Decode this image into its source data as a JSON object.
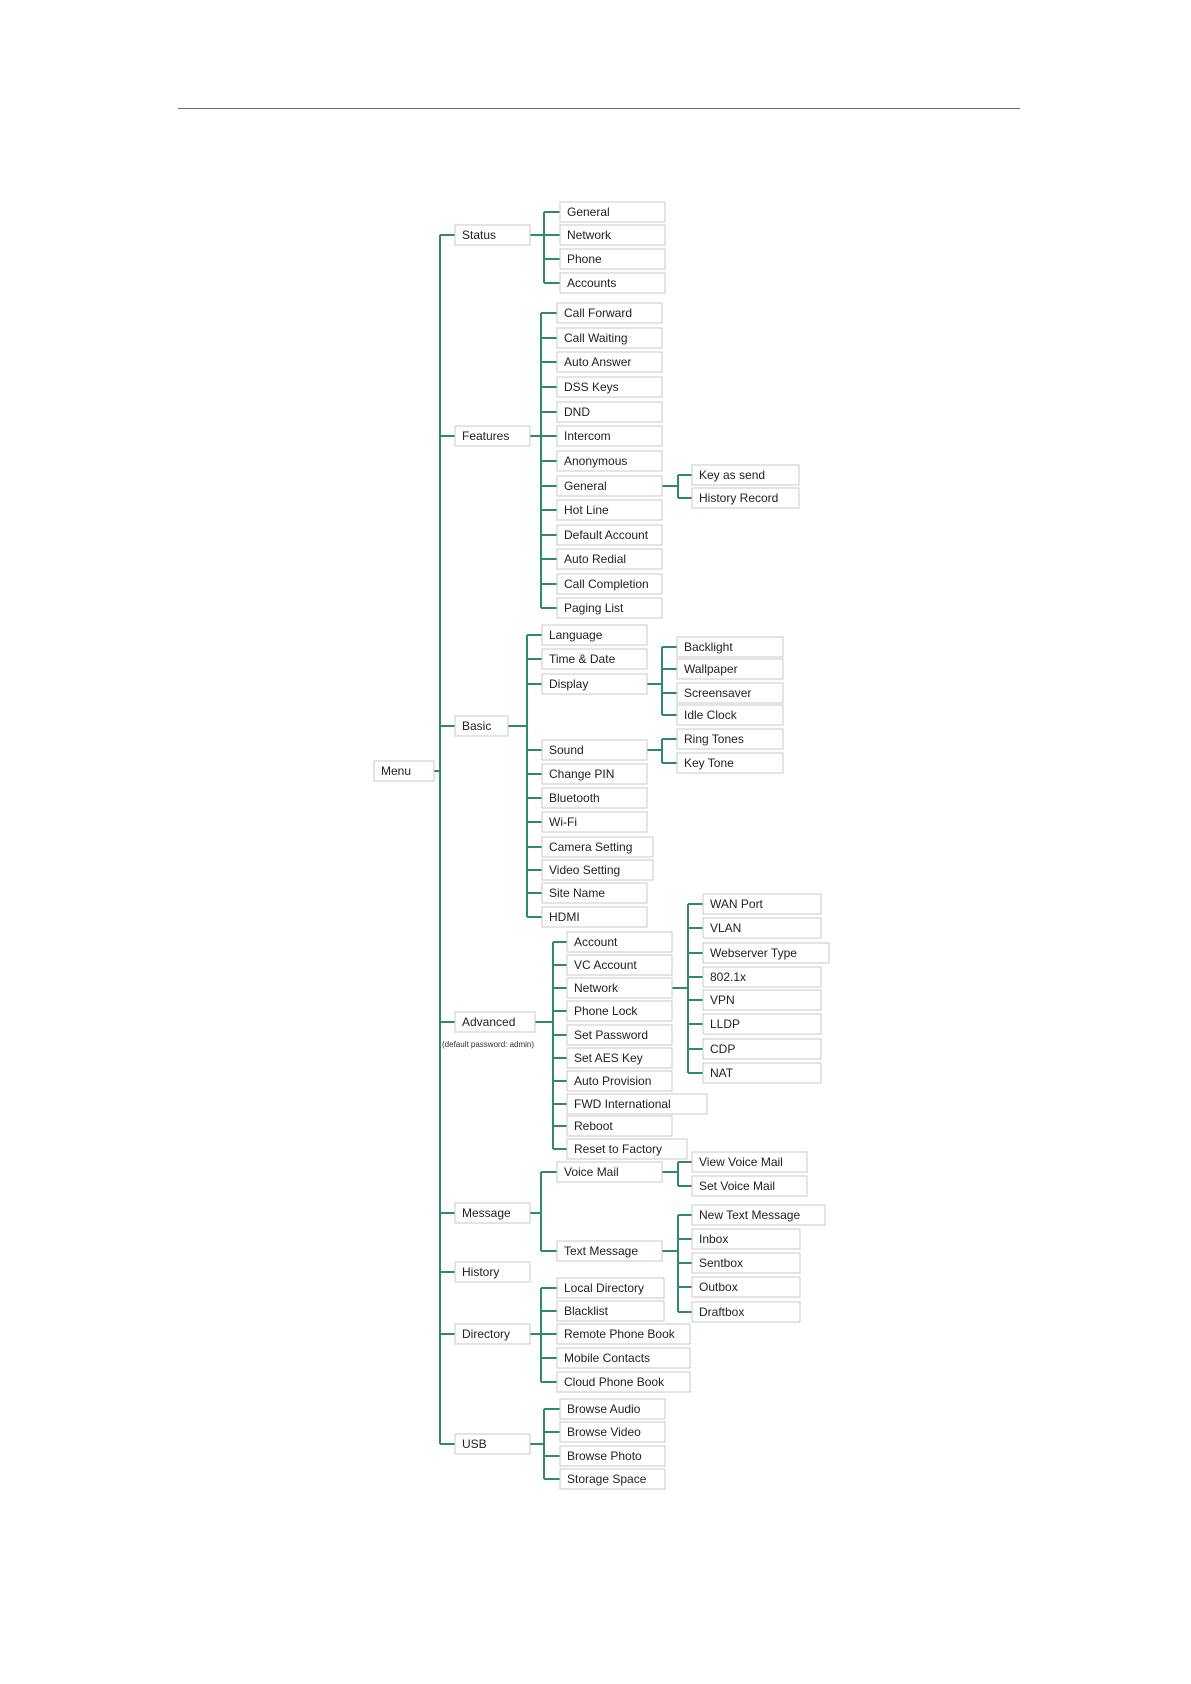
{
  "colors": {
    "connector": "#2e8b67",
    "box_border": "#c9c9c9"
  },
  "menu_tree": {
    "root": "Menu",
    "status": {
      "label": "Status",
      "children": [
        "General",
        "Network",
        "Phone",
        "Accounts"
      ]
    },
    "features": {
      "label": "Features",
      "children": [
        "Call Forward",
        "Call Waiting",
        "Auto Answer",
        "DSS Keys",
        "DND",
        "Intercom",
        "Anonymous",
        "General",
        "Hot Line",
        "Default Account",
        "Auto Redial",
        "Call Completion",
        "Paging List"
      ],
      "general_children": [
        "Key as send",
        "History Record"
      ]
    },
    "basic": {
      "label": "Basic",
      "children": [
        "Language",
        "Time & Date",
        "Display",
        "Sound",
        "Change PIN",
        "Bluetooth",
        "Wi-Fi",
        "Camera Setting",
        "Video Setting",
        "Site Name",
        "HDMI"
      ],
      "display_children": [
        "Backlight",
        "Wallpaper",
        "Screensaver",
        "Idle Clock"
      ],
      "sound_children": [
        "Ring Tones",
        "Key Tone"
      ]
    },
    "advanced": {
      "label": "Advanced",
      "note": "(default password: admin)",
      "children": [
        "Account",
        "VC Account",
        "Network",
        "Phone Lock",
        "Set Password",
        "Set AES Key",
        "Auto Provision",
        "FWD International",
        "Reboot",
        "Reset to Factory"
      ],
      "network_children": [
        "WAN Port",
        "VLAN",
        "Webserver Type",
        "802.1x",
        "VPN",
        "LLDP",
        "CDP",
        "NAT"
      ]
    },
    "message": {
      "label": "Message",
      "children": [
        "Voice Mail",
        "Text Message"
      ],
      "voice_mail_children": [
        "View Voice Mail",
        "Set Voice Mail"
      ],
      "text_message_children": [
        "New Text Message",
        "Inbox",
        "Sentbox",
        "Outbox",
        "Draftbox"
      ]
    },
    "history": {
      "label": "History"
    },
    "directory": {
      "label": "Directory",
      "children": [
        "Local Directory",
        "Blacklist",
        "Remote Phone Book",
        "Mobile Contacts",
        "Cloud Phone Book"
      ]
    },
    "usb": {
      "label": "USB",
      "children": [
        "Browse Audio",
        "Browse Video",
        "Browse Photo",
        "Storage Space"
      ]
    }
  }
}
